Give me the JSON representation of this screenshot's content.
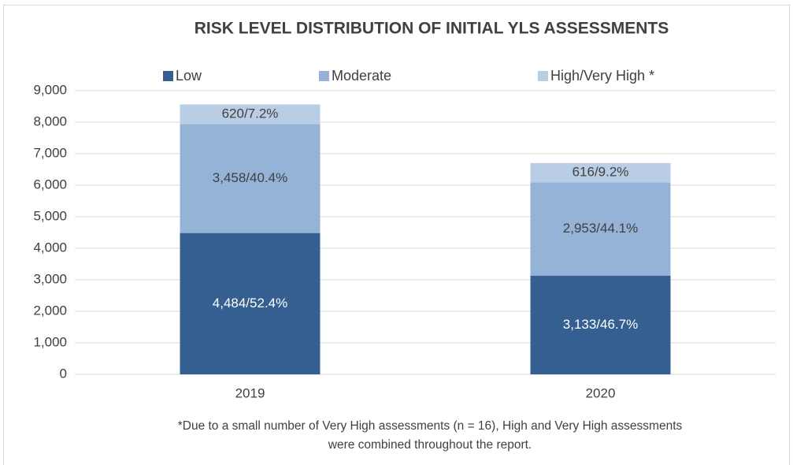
{
  "chart_data": {
    "type": "stacked-bar",
    "title": "RISK LEVEL DISTRIBUTION OF INITIAL YLS ASSESSMENTS",
    "categories": [
      "2019",
      "2020"
    ],
    "series": [
      {
        "name": "Low",
        "color": "#355f91",
        "label_color": "#ffffff",
        "values": [
          4484,
          3133
        ],
        "value_labels": [
          "4,484/52.4%",
          "3,133/46.7%"
        ]
      },
      {
        "name": "Moderate",
        "color": "#95b3d7",
        "label_color": "#404040",
        "values": [
          3458,
          2953
        ],
        "value_labels": [
          "3,458/40.4%",
          "2,953/44.1%"
        ]
      },
      {
        "name": "High/Very High *",
        "color": "#b9cde5",
        "label_color": "#404040",
        "values": [
          620,
          616
        ],
        "value_labels": [
          "620/7.2%",
          "616/9.2%"
        ]
      }
    ],
    "ylim": [
      0,
      9000
    ],
    "yticks": [
      0,
      {
        "value": 1000,
        "label": "1,000"
      },
      {
        "value": 2000,
        "label": "2,000"
      },
      {
        "value": 3000,
        "label": "3,000"
      },
      {
        "value": 4000,
        "label": "4,000"
      },
      {
        "value": 5000,
        "label": "5,000"
      },
      {
        "value": 6000,
        "label": "6,000"
      },
      {
        "value": 7000,
        "label": "7,000"
      },
      {
        "value": 8000,
        "label": "8,000"
      },
      {
        "value": 9000,
        "label": "9,000"
      }
    ],
    "grid": true,
    "legend": "top",
    "footnote": [
      "*Due to a small number of Very High assessments (n = 16), High and Very High assessments",
      "were combined throughout the report."
    ]
  }
}
